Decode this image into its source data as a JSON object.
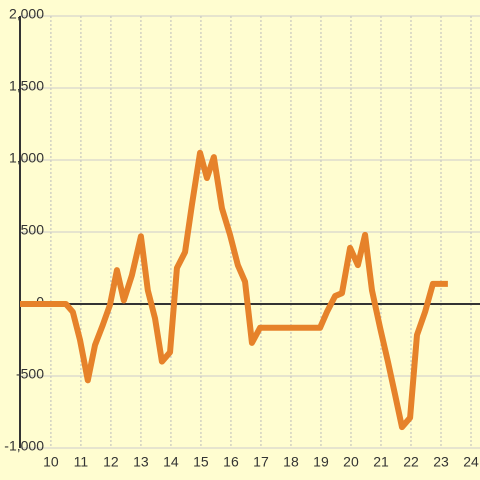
{
  "chart_data": {
    "type": "line",
    "x": [
      8.97,
      10.5,
      10.73,
      10.97,
      11.23,
      11.47,
      11.73,
      11.97,
      12.2,
      12.43,
      12.7,
      13.0,
      13.23,
      13.47,
      13.7,
      13.97,
      14.2,
      14.47,
      14.7,
      14.97,
      15.2,
      15.43,
      15.7,
      15.97,
      16.23,
      16.47,
      16.7,
      16.97,
      18.97,
      19.2,
      19.47,
      19.7,
      19.97,
      20.23,
      20.47,
      20.7,
      20.97,
      21.23,
      21.47,
      21.7,
      21.97,
      22.2,
      22.47,
      22.73,
      23.23
    ],
    "series": [
      {
        "color": "#e6822a",
        "values": [
          0,
          0,
          -55,
          -250,
          -530,
          -285,
          -145,
          -5,
          235,
          25,
          200,
          470,
          95,
          -100,
          -400,
          -335,
          250,
          360,
          690,
          1050,
          875,
          1020,
          665,
          480,
          270,
          155,
          -270,
          -165,
          -165,
          -55,
          55,
          75,
          390,
          270,
          480,
          95,
          -165,
          -400,
          -630,
          -855,
          -790,
          -215,
          -55,
          140,
          140
        ]
      }
    ],
    "xlim": [
      8.97,
      24.3
    ],
    "xticks": [
      10,
      11,
      12,
      13,
      14,
      15,
      16,
      17,
      18,
      19,
      20,
      21,
      22,
      23,
      24
    ],
    "ylim": [
      -1000,
      2000
    ],
    "yticks": [
      {
        "value": -1000,
        "label": "-1,000"
      },
      -500,
      0,
      500,
      {
        "value": 1000,
        "label": "1,000"
      },
      {
        "value": 1500,
        "label": "1,500"
      },
      {
        "value": 2000,
        "label": "2,000"
      }
    ],
    "grid": true
  }
}
